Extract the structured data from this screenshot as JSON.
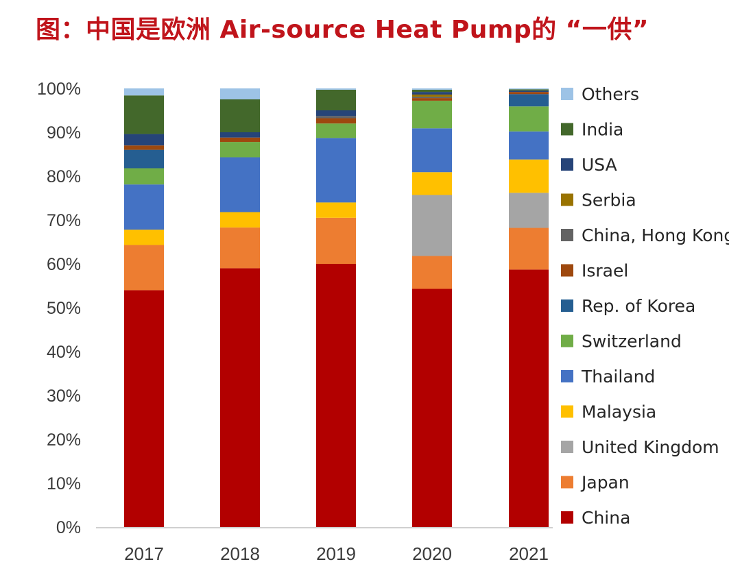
{
  "chart_data": {
    "type": "bar",
    "stacked": true,
    "percent_stacked": true,
    "title": "图：中国是欧洲 Air-source Heat Pump的 “一供”",
    "xlabel": "",
    "ylabel": "",
    "ylim": [
      0,
      100
    ],
    "y_ticks": [
      "0%",
      "10%",
      "20%",
      "30%",
      "40%",
      "50%",
      "60%",
      "70%",
      "80%",
      "90%",
      "100%"
    ],
    "categories": [
      "2017",
      "2018",
      "2019",
      "2020",
      "2021"
    ],
    "grid": false,
    "legend_position": "right",
    "series": [
      {
        "name": "China",
        "color": "#b20000",
        "values": [
          54,
          59,
          60,
          54.3,
          58.7
        ]
      },
      {
        "name": "Japan",
        "color": "#ed7d31",
        "values": [
          10.3,
          9.3,
          10.5,
          7.5,
          9.5
        ]
      },
      {
        "name": "United Kingdom",
        "color": "#a5a5a5",
        "values": [
          0,
          0,
          0,
          13.9,
          8.0
        ]
      },
      {
        "name": "Malaysia",
        "color": "#ffc000",
        "values": [
          3.5,
          3.5,
          3.5,
          5.2,
          7.6
        ]
      },
      {
        "name": "Thailand",
        "color": "#4472c4",
        "values": [
          10.3,
          12.5,
          14.7,
          10.0,
          6.4
        ]
      },
      {
        "name": "Switzerland",
        "color": "#70ad47",
        "values": [
          3.7,
          3.5,
          3.3,
          6.3,
          5.7
        ]
      },
      {
        "name": "Rep. of Korea",
        "color": "#255e91",
        "values": [
          4.2,
          0,
          0,
          0,
          2.8
        ]
      },
      {
        "name": "Israel",
        "color": "#9e480e",
        "values": [
          1.0,
          1.0,
          1.2,
          0.6,
          0.5
        ]
      },
      {
        "name": "China, Hong Kong",
        "color": "#636363",
        "values": [
          0,
          0,
          0.5,
          0.3,
          0
        ]
      },
      {
        "name": "Serbia",
        "color": "#997300",
        "values": [
          0,
          0,
          0,
          0.5,
          0
        ]
      },
      {
        "name": "USA",
        "color": "#264478",
        "values": [
          2.6,
          1.2,
          1.3,
          0.6,
          0.3
        ]
      },
      {
        "name": "India",
        "color": "#43682b",
        "values": [
          8.8,
          7.5,
          4.7,
          0.5,
          0.3
        ]
      },
      {
        "name": "Others",
        "color": "#9dc3e6",
        "values": [
          1.6,
          2.5,
          0.3,
          0.3,
          0.2
        ]
      }
    ]
  }
}
